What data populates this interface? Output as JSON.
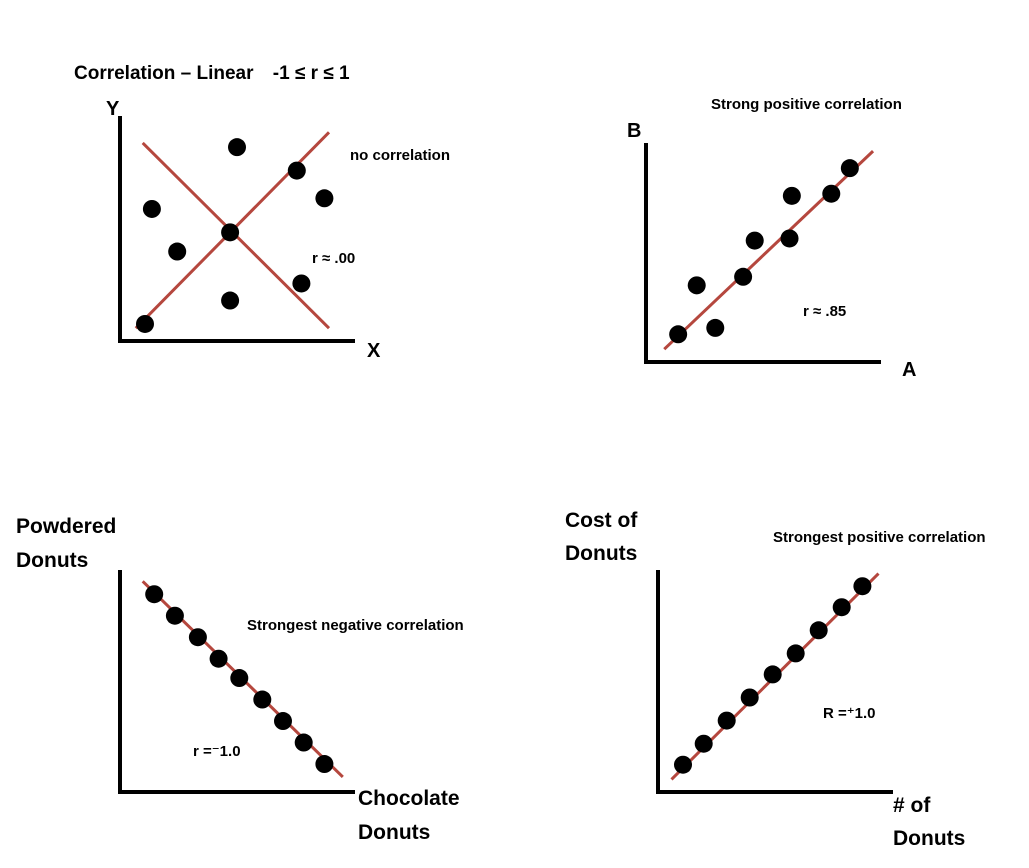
{
  "page": {
    "title_prefix": "Correlation – Linear",
    "title_range": "-1 ≤ r ≤ 1"
  },
  "colors": {
    "fit_line": "#b5473e",
    "points": "#000000",
    "axes": "#000000"
  },
  "chart_data": [
    {
      "id": "no-correlation",
      "type": "scatter",
      "annotation": "no correlation",
      "r_label": "r ≈ .00",
      "xlabel": "X",
      "ylabel": "Y",
      "xlim": [
        0,
        10
      ],
      "ylim": [
        0,
        10
      ],
      "points": [
        {
          "x": 1.0,
          "y": 0.8
        },
        {
          "x": 1.3,
          "y": 6.2
        },
        {
          "x": 2.4,
          "y": 4.2
        },
        {
          "x": 5.0,
          "y": 9.1
        },
        {
          "x": 4.7,
          "y": 5.1
        },
        {
          "x": 4.7,
          "y": 1.9
        },
        {
          "x": 7.6,
          "y": 8.0
        },
        {
          "x": 8.8,
          "y": 6.7
        },
        {
          "x": 7.8,
          "y": 2.7
        }
      ],
      "fit_lines": [
        {
          "x1": 0.6,
          "y1": 0.6,
          "x2": 9.0,
          "y2": 9.8
        },
        {
          "x1": 0.9,
          "y1": 9.3,
          "x2": 9.0,
          "y2": 0.6
        }
      ]
    },
    {
      "id": "strong-positive",
      "type": "scatter",
      "annotation": "Strong positive correlation",
      "r_label": "r ≈ .85",
      "xlabel": "A",
      "ylabel": "B",
      "xlim": [
        0,
        10
      ],
      "ylim": [
        0,
        10
      ],
      "points": [
        {
          "x": 1.3,
          "y": 1.3
        },
        {
          "x": 2.1,
          "y": 3.6
        },
        {
          "x": 2.9,
          "y": 1.6
        },
        {
          "x": 4.1,
          "y": 4.0
        },
        {
          "x": 4.6,
          "y": 5.7
        },
        {
          "x": 6.1,
          "y": 5.8
        },
        {
          "x": 6.2,
          "y": 7.8
        },
        {
          "x": 7.9,
          "y": 7.9
        },
        {
          "x": 8.7,
          "y": 9.1
        }
      ],
      "fit_lines": [
        {
          "x1": 0.7,
          "y1": 0.6,
          "x2": 9.7,
          "y2": 9.9
        }
      ]
    },
    {
      "id": "strongest-negative",
      "type": "scatter",
      "annotation": "Strongest negative correlation",
      "r_label": "r =⁻1.0",
      "xlabel": [
        "Chocolate",
        "Donuts"
      ],
      "ylabel": [
        "Powdered",
        "Donuts"
      ],
      "xlim": [
        0,
        10
      ],
      "ylim": [
        0,
        10
      ],
      "points": [
        {
          "x": 1.4,
          "y": 9.2
        },
        {
          "x": 2.3,
          "y": 8.2
        },
        {
          "x": 3.3,
          "y": 7.2
        },
        {
          "x": 4.2,
          "y": 6.2
        },
        {
          "x": 5.1,
          "y": 5.3
        },
        {
          "x": 6.1,
          "y": 4.3
        },
        {
          "x": 7.0,
          "y": 3.3
        },
        {
          "x": 7.9,
          "y": 2.3
        },
        {
          "x": 8.8,
          "y": 1.3
        }
      ],
      "fit_lines": [
        {
          "x1": 0.9,
          "y1": 9.8,
          "x2": 9.6,
          "y2": 0.7
        }
      ]
    },
    {
      "id": "strongest-positive",
      "type": "scatter",
      "annotation": "Strongest positive correlation",
      "r_label": "R =⁺1.0",
      "xlabel": [
        "# of",
        "Donuts"
      ],
      "ylabel": [
        "Cost  of",
        "Donuts"
      ],
      "xlim": [
        0,
        10
      ],
      "ylim": [
        0,
        10
      ],
      "points": [
        {
          "x": 1.0,
          "y": 1.3
        },
        {
          "x": 1.9,
          "y": 2.3
        },
        {
          "x": 2.9,
          "y": 3.4
        },
        {
          "x": 3.9,
          "y": 4.5
        },
        {
          "x": 4.9,
          "y": 5.6
        },
        {
          "x": 5.9,
          "y": 6.6
        },
        {
          "x": 6.9,
          "y": 7.7
        },
        {
          "x": 7.9,
          "y": 8.8
        },
        {
          "x": 8.8,
          "y": 9.8
        }
      ],
      "fit_lines": [
        {
          "x1": 0.5,
          "y1": 0.6,
          "x2": 9.5,
          "y2": 10.4
        }
      ]
    }
  ]
}
